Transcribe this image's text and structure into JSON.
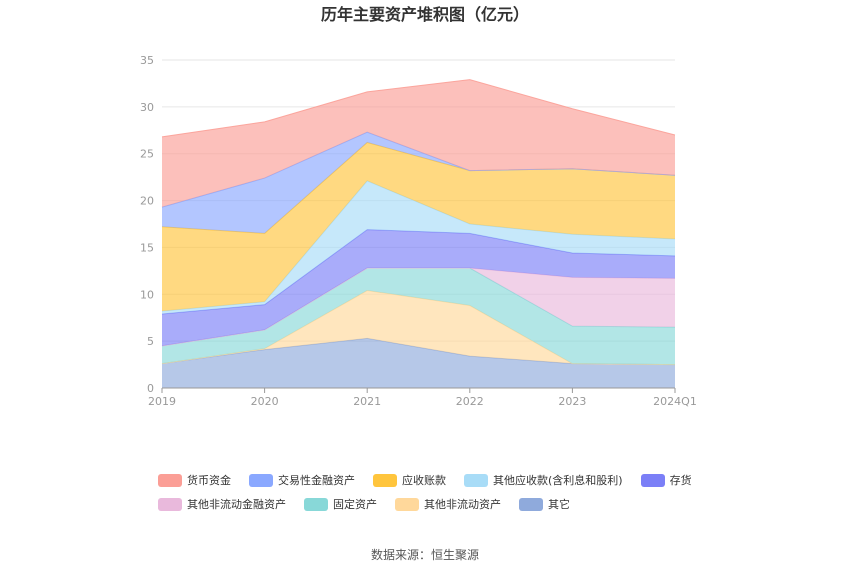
{
  "chart_data": {
    "type": "area",
    "stacked": true,
    "title": "历年主要资产堆积图（亿元）",
    "categories": [
      "2019",
      "2020",
      "2021",
      "2022",
      "2023",
      "2024Q1"
    ],
    "ylim": [
      0,
      35
    ],
    "yticks": [
      0,
      5,
      10,
      15,
      20,
      25,
      30,
      35
    ],
    "grid": true,
    "legend_position": "bottom",
    "series": [
      {
        "name": "其它",
        "color": "#8faadc",
        "values": [
          2.6,
          4.1,
          5.3,
          3.4,
          2.6,
          2.5
        ]
      },
      {
        "name": "其他非流动资产",
        "color": "#ffd89b",
        "values": [
          0.0,
          0.1,
          5.1,
          5.4,
          0.0,
          0.0
        ]
      },
      {
        "name": "固定资产",
        "color": "#88d8d8",
        "values": [
          1.9,
          2.0,
          2.4,
          4.0,
          4.0,
          4.0
        ]
      },
      {
        "name": "其他非流动金融资产",
        "color": "#e9b9dc",
        "values": [
          0.0,
          0.0,
          0.0,
          0.0,
          5.2,
          5.2
        ]
      },
      {
        "name": "存货",
        "color": "#7b7ff7",
        "values": [
          3.4,
          2.7,
          4.1,
          3.7,
          2.6,
          2.4
        ]
      },
      {
        "name": "其他应收款(含利息和股利)",
        "color": "#a8dcf7",
        "values": [
          0.3,
          0.3,
          5.2,
          1.0,
          2.0,
          1.8
        ]
      },
      {
        "name": "应收账款",
        "color": "#ffc53d",
        "values": [
          9.0,
          7.3,
          4.1,
          5.7,
          7.0,
          6.8
        ]
      },
      {
        "name": "交易性金融资产",
        "color": "#8aa8ff",
        "values": [
          2.1,
          5.9,
          1.1,
          0.0,
          0.0,
          0.0
        ]
      },
      {
        "name": "货币资金",
        "color": "#fb9e96",
        "values": [
          7.5,
          6.0,
          4.3,
          9.7,
          6.4,
          4.3
        ]
      }
    ]
  },
  "legend": {
    "row1": [
      {
        "name": "货币资金",
        "color": "#fb9e96"
      },
      {
        "name": "交易性金融资产",
        "color": "#8aa8ff"
      },
      {
        "name": "应收账款",
        "color": "#ffc53d"
      },
      {
        "name": "其他应收款(含利息和股利)",
        "color": "#a8dcf7"
      },
      {
        "name": "存货",
        "color": "#7b7ff7"
      }
    ],
    "row2": [
      {
        "name": "其他非流动金融资产",
        "color": "#e9b9dc"
      },
      {
        "name": "固定资产",
        "color": "#88d8d8"
      },
      {
        "name": "其他非流动资产",
        "color": "#ffd89b"
      },
      {
        "name": "其它",
        "color": "#8faadc"
      }
    ]
  },
  "source_text": "数据来源：恒生聚源"
}
